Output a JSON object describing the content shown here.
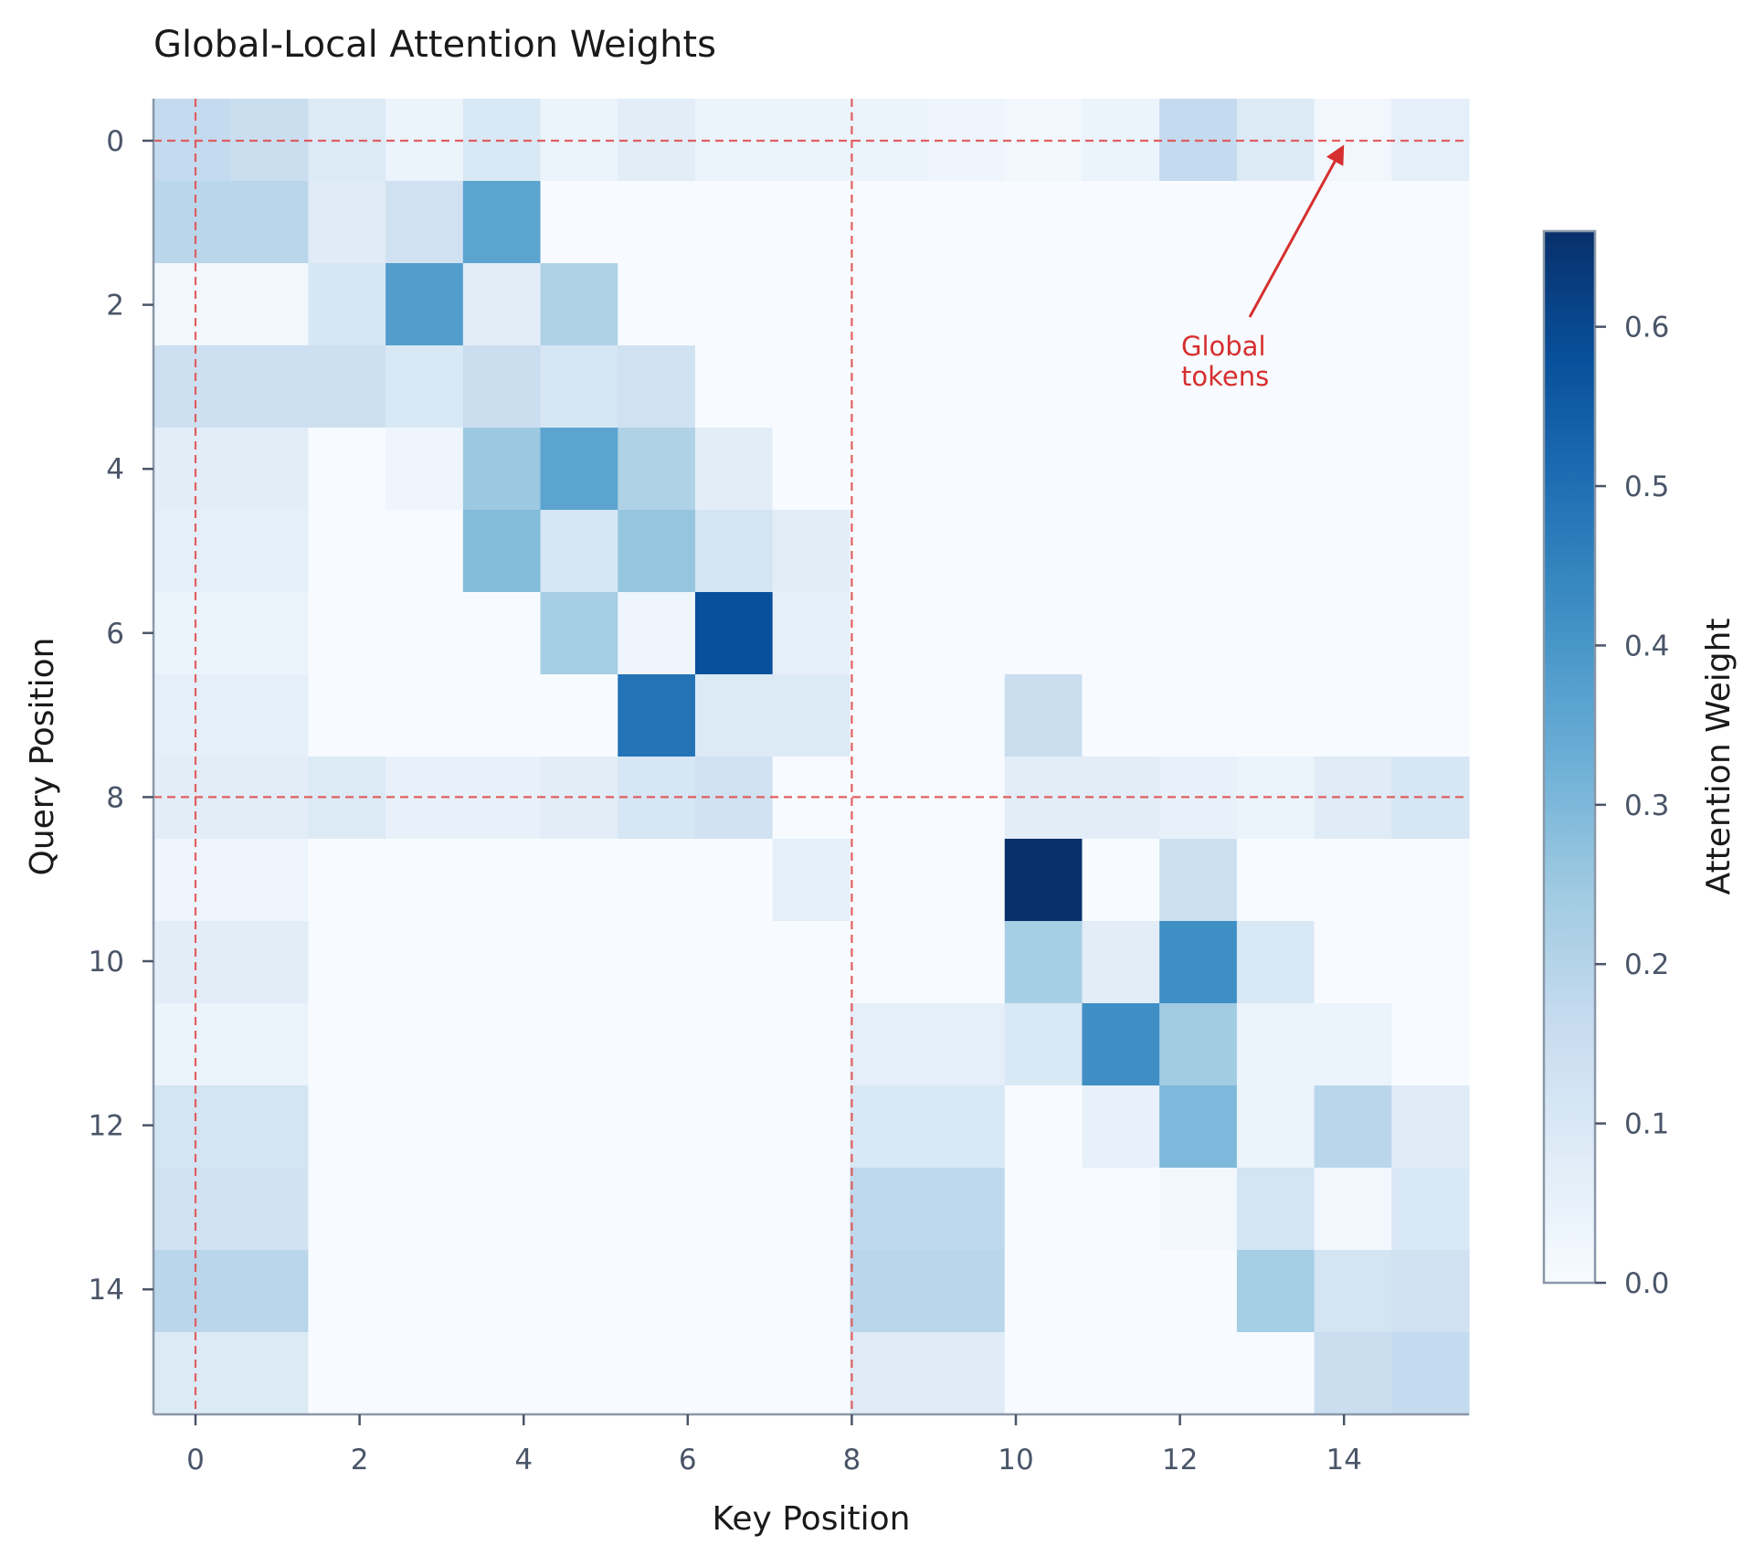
{
  "chart_data": {
    "type": "heatmap",
    "title": "Global-Local Attention Weights",
    "xlabel": "Key Position",
    "ylabel": "Query Position",
    "x_ticks": [
      0,
      2,
      4,
      6,
      8,
      10,
      12,
      14
    ],
    "y_ticks": [
      0,
      2,
      4,
      6,
      8,
      10,
      12,
      14
    ],
    "x_range": [
      0,
      15
    ],
    "y_range": [
      0,
      15
    ],
    "colormap": "Blues",
    "global_tokens": [
      0,
      8
    ],
    "global_line_color": "#e05050",
    "colorbar": {
      "label": "Attention Weight",
      "min": 0.0,
      "max": 0.66,
      "ticks": [
        0.0,
        0.1,
        0.2,
        0.3,
        0.4,
        0.5,
        0.6
      ],
      "tick_labels": [
        "0.0",
        "0.1",
        "0.2",
        "0.3",
        "0.4",
        "0.5",
        "0.6"
      ]
    },
    "annotation": {
      "text_lines": [
        "Global",
        "tokens"
      ],
      "point_to": [
        14,
        0
      ],
      "color": "#d62f2f"
    },
    "values": [
      [
        0.17,
        0.15,
        0.09,
        0.04,
        0.1,
        0.04,
        0.07,
        0.04,
        0.04,
        0.04,
        0.03,
        0.02,
        0.04,
        0.17,
        0.09,
        0.02,
        0.06
      ],
      [
        0.19,
        0.19,
        0.08,
        0.13,
        0.36,
        0.0,
        0.0,
        0.0,
        0.0,
        0.0,
        0.0,
        0.0,
        0.0,
        0.0,
        0.0,
        0.0,
        0.0
      ],
      [
        0.02,
        0.02,
        0.11,
        0.38,
        0.07,
        0.21,
        0.0,
        0.0,
        0.0,
        0.0,
        0.0,
        0.0,
        0.0,
        0.0,
        0.0,
        0.0,
        0.0
      ],
      [
        0.14,
        0.14,
        0.14,
        0.1,
        0.15,
        0.11,
        0.13,
        0.0,
        0.0,
        0.0,
        0.0,
        0.0,
        0.0,
        0.0,
        0.0,
        0.0,
        0.0
      ],
      [
        0.07,
        0.07,
        0.0,
        0.03,
        0.25,
        0.36,
        0.21,
        0.07,
        0.0,
        0.0,
        0.0,
        0.0,
        0.0,
        0.0,
        0.0,
        0.0,
        0.0
      ],
      [
        0.06,
        0.06,
        0.0,
        0.0,
        0.29,
        0.11,
        0.26,
        0.12,
        0.07,
        0.0,
        0.0,
        0.0,
        0.0,
        0.0,
        0.0,
        0.0,
        0.0
      ],
      [
        0.04,
        0.04,
        0.0,
        0.0,
        0.0,
        0.23,
        0.03,
        0.58,
        0.06,
        0.0,
        0.0,
        0.0,
        0.0,
        0.0,
        0.0,
        0.0,
        0.0
      ],
      [
        0.06,
        0.06,
        0.0,
        0.0,
        0.0,
        0.0,
        0.49,
        0.09,
        0.09,
        0.0,
        0.0,
        0.15,
        0.0,
        0.0,
        0.0,
        0.0,
        0.0
      ],
      [
        0.07,
        0.07,
        0.09,
        0.05,
        0.05,
        0.07,
        0.11,
        0.13,
        0.0,
        0.0,
        0.0,
        0.07,
        0.07,
        0.05,
        0.04,
        0.08,
        0.11
      ],
      [
        0.03,
        0.03,
        0.0,
        0.0,
        0.0,
        0.0,
        0.0,
        0.0,
        0.06,
        0.0,
        0.0,
        0.66,
        0.0,
        0.14,
        0.0,
        0.0,
        0.0
      ],
      [
        0.07,
        0.07,
        0.0,
        0.0,
        0.0,
        0.0,
        0.0,
        0.0,
        0.0,
        0.0,
        0.0,
        0.23,
        0.07,
        0.42,
        0.1,
        0.0,
        0.0
      ],
      [
        0.04,
        0.04,
        0.0,
        0.0,
        0.0,
        0.0,
        0.0,
        0.0,
        0.0,
        0.06,
        0.06,
        0.1,
        0.42,
        0.24,
        0.04,
        0.04,
        0.0
      ],
      [
        0.12,
        0.12,
        0.0,
        0.0,
        0.0,
        0.0,
        0.0,
        0.0,
        0.0,
        0.1,
        0.1,
        0.0,
        0.05,
        0.3,
        0.04,
        0.19,
        0.08
      ],
      [
        0.13,
        0.13,
        0.0,
        0.0,
        0.0,
        0.0,
        0.0,
        0.0,
        0.0,
        0.18,
        0.18,
        0.0,
        0.0,
        0.02,
        0.12,
        0.02,
        0.1
      ],
      [
        0.19,
        0.19,
        0.0,
        0.0,
        0.0,
        0.0,
        0.0,
        0.0,
        0.0,
        0.19,
        0.19,
        0.0,
        0.0,
        0.0,
        0.23,
        0.12,
        0.13
      ],
      [
        0.09,
        0.09,
        0.0,
        0.0,
        0.0,
        0.0,
        0.0,
        0.0,
        0.0,
        0.08,
        0.08,
        0.0,
        0.0,
        0.0,
        0.0,
        0.15,
        0.17
      ]
    ]
  }
}
